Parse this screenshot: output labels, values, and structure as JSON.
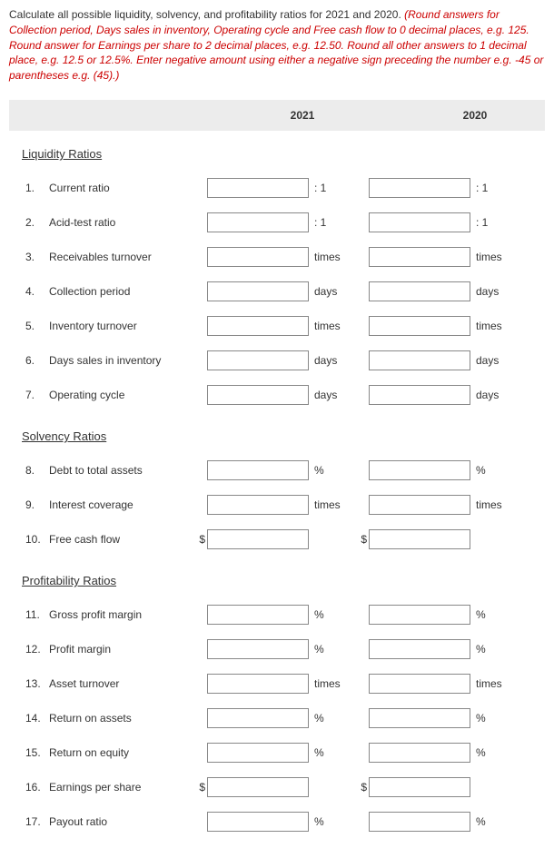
{
  "instructions": {
    "black1": "Calculate all possible liquidity, solvency, and profitability ratios for 2021 and 2020. ",
    "red": "(Round answers for Collection period, Days sales in inventory, Operating cycle and Free cash flow to 0 decimal places, e.g. 125. Round answer for Earnings per share to 2 decimal places, e.g. 12.50. Round all other answers to 1 decimal place, e.g. 12.5 or 12.5%. Enter negative amount using either a negative sign preceding the number e.g. -45 or parentheses e.g. (45).)"
  },
  "header": {
    "year1": "2021",
    "year2": "2020"
  },
  "sections": [
    {
      "title": "Liquidity Ratios",
      "rows": [
        {
          "n": "1.",
          "label": "Current ratio",
          "suffix": ": 1",
          "prefix": ""
        },
        {
          "n": "2.",
          "label": "Acid-test ratio",
          "suffix": ": 1",
          "prefix": ""
        },
        {
          "n": "3.",
          "label": "Receivables turnover",
          "suffix": "times",
          "prefix": ""
        },
        {
          "n": "4.",
          "label": "Collection period",
          "suffix": "days",
          "prefix": ""
        },
        {
          "n": "5.",
          "label": "Inventory turnover",
          "suffix": "times",
          "prefix": ""
        },
        {
          "n": "6.",
          "label": "Days sales in inventory",
          "suffix": "days",
          "prefix": ""
        },
        {
          "n": "7.",
          "label": "Operating cycle",
          "suffix": "days",
          "prefix": ""
        }
      ]
    },
    {
      "title": "Solvency Ratios",
      "rows": [
        {
          "n": "8.",
          "label": "Debt to total assets",
          "suffix": "%",
          "prefix": ""
        },
        {
          "n": "9.",
          "label": "Interest coverage",
          "suffix": "times",
          "prefix": ""
        },
        {
          "n": "10.",
          "label": "Free cash flow",
          "suffix": "",
          "prefix": "$"
        }
      ]
    },
    {
      "title": "Profitability Ratios",
      "rows": [
        {
          "n": "11.",
          "label": "Gross profit margin",
          "suffix": "%",
          "prefix": ""
        },
        {
          "n": "12.",
          "label": "Profit margin",
          "suffix": "%",
          "prefix": ""
        },
        {
          "n": "13.",
          "label": "Asset turnover",
          "suffix": "times",
          "prefix": ""
        },
        {
          "n": "14.",
          "label": "Return on assets",
          "suffix": "%",
          "prefix": ""
        },
        {
          "n": "15.",
          "label": "Return on equity",
          "suffix": "%",
          "prefix": ""
        },
        {
          "n": "16.",
          "label": "Earnings per share",
          "suffix": "",
          "prefix": "$"
        },
        {
          "n": "17.",
          "label": "Payout ratio",
          "suffix": "%",
          "prefix": ""
        }
      ]
    }
  ]
}
